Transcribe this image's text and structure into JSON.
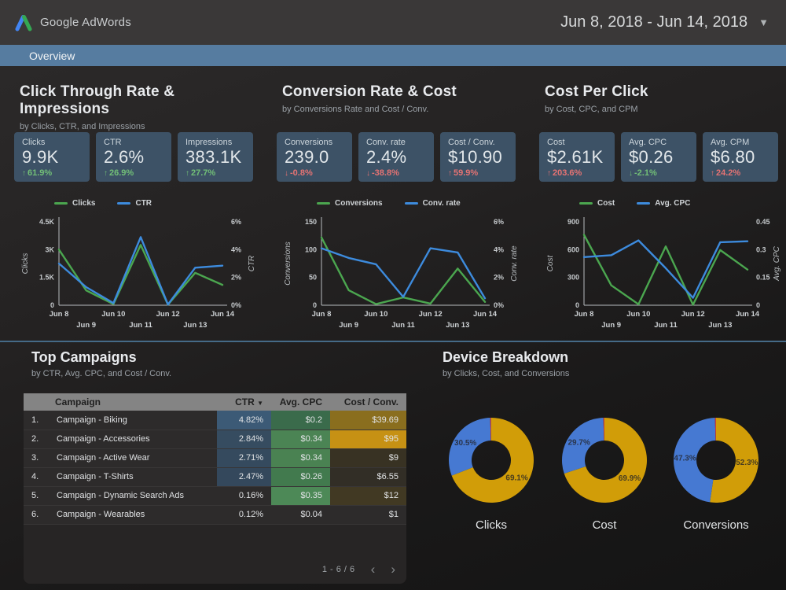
{
  "header": {
    "app_title": "Google AdWords",
    "date_range": "Jun 8, 2018 - Jun 14, 2018"
  },
  "tabs": {
    "overview": "Overview"
  },
  "sections": [
    {
      "title": "Click Through Rate & Impressions",
      "subtitle": "by Clicks, CTR, and Impressions",
      "scorecards": [
        {
          "label": "Clicks",
          "value": "9.9K",
          "arrow": "↑",
          "delta": "61.9%",
          "delta_color": "#72bf77"
        },
        {
          "label": "CTR",
          "value": "2.6%",
          "arrow": "↑",
          "delta": "26.9%",
          "delta_color": "#72bf77"
        },
        {
          "label": "Impressions",
          "value": "383.1K",
          "arrow": "↑",
          "delta": "27.7%",
          "delta_color": "#72bf77"
        }
      ]
    },
    {
      "title": "Conversion Rate & Cost",
      "subtitle": "by Conversions Rate and Cost / Conv.",
      "scorecards": [
        {
          "label": "Conversions",
          "value": "239.0",
          "arrow": "↓",
          "delta": "-0.8%",
          "delta_color": "#e57373"
        },
        {
          "label": "Conv. rate",
          "value": "2.4%",
          "arrow": "↓",
          "delta": "-38.8%",
          "delta_color": "#e57373"
        },
        {
          "label": "Cost / Conv.",
          "value": "$10.90",
          "arrow": "↑",
          "delta": "59.9%",
          "delta_color": "#e57373"
        }
      ]
    },
    {
      "title": "Cost Per Click",
      "subtitle": "by Cost, CPC, and CPM",
      "scorecards": [
        {
          "label": "Cost",
          "value": "$2.61K",
          "arrow": "↑",
          "delta": "203.6%",
          "delta_color": "#e57373"
        },
        {
          "label": "Avg. CPC",
          "value": "$0.26",
          "arrow": "↓",
          "delta": "-2.1%",
          "delta_color": "#72bf77"
        },
        {
          "label": "Avg. CPM",
          "value": "$6.80",
          "arrow": "↑",
          "delta": "24.2%",
          "delta_color": "#e57373"
        }
      ]
    }
  ],
  "chart_data": [
    {
      "type": "line",
      "x": [
        "Jun 8",
        "Jun 9",
        "Jun 10",
        "Jun 11",
        "Jun 12",
        "Jun 13",
        "Jun 14"
      ],
      "series": [
        {
          "name": "Clicks",
          "axis": "left",
          "color": "#4ba64f",
          "values": [
            3000,
            800,
            60,
            3250,
            30,
            1750,
            1100
          ]
        },
        {
          "name": "CTR",
          "axis": "right",
          "color": "#3d8bdd",
          "values": [
            3.0,
            1.3,
            0.15,
            4.9,
            0.05,
            2.7,
            2.85
          ]
        }
      ],
      "left_axis": {
        "label": "Clicks",
        "min": 0,
        "max": 4500,
        "ticks": [
          "0",
          "1.5K",
          "3K",
          "4.5K"
        ]
      },
      "right_axis": {
        "label": "CTR",
        "min": 0,
        "max": 6,
        "ticks": [
          "0%",
          "2%",
          "4%",
          "6%"
        ]
      }
    },
    {
      "type": "line",
      "x": [
        "Jun 8",
        "Jun 9",
        "Jun 10",
        "Jun 11",
        "Jun 12",
        "Jun 13",
        "Jun 14"
      ],
      "series": [
        {
          "name": "Conversions",
          "axis": "left",
          "color": "#4ba64f",
          "values": [
            122,
            27,
            2,
            14,
            3,
            66,
            6
          ]
        },
        {
          "name": "Conv. rate",
          "axis": "right",
          "color": "#3d8bdd",
          "values": [
            4.1,
            3.4,
            2.95,
            0.6,
            4.1,
            3.8,
            0.5
          ]
        }
      ],
      "left_axis": {
        "label": "Conversions",
        "min": 0,
        "max": 150,
        "ticks": [
          "0",
          "50",
          "100",
          "150"
        ]
      },
      "right_axis": {
        "label": "Conv. rate",
        "min": 0,
        "max": 6,
        "ticks": [
          "0%",
          "2%",
          "4%",
          "6%"
        ]
      }
    },
    {
      "type": "line",
      "x": [
        "Jun 8",
        "Jun 9",
        "Jun 10",
        "Jun 11",
        "Jun 12",
        "Jun 13",
        "Jun 14"
      ],
      "series": [
        {
          "name": "Cost",
          "axis": "left",
          "color": "#4ba64f",
          "values": [
            760,
            215,
            10,
            635,
            5,
            595,
            385
          ]
        },
        {
          "name": "Avg. CPC",
          "axis": "right",
          "color": "#3d8bdd",
          "values": [
            0.26,
            0.27,
            0.35,
            0.2,
            0.04,
            0.34,
            0.345
          ]
        }
      ],
      "left_axis": {
        "label": "Cost",
        "min": 0,
        "max": 900,
        "ticks": [
          "0",
          "300",
          "600",
          "900"
        ]
      },
      "right_axis": {
        "label": "Avg. CPC",
        "min": 0,
        "max": 0.45,
        "ticks": [
          "0",
          "0.15",
          "0.3",
          "0.45"
        ]
      }
    },
    {
      "type": "donut",
      "title": "Clicks",
      "slices": [
        {
          "color": "#d19d08",
          "pct": 69.1,
          "label": "69.1%"
        },
        {
          "color": "#4679d2",
          "pct": 30.5,
          "label": "30.5%"
        },
        {
          "color": "#cc3e33",
          "pct": 0.4,
          "label": ""
        }
      ]
    },
    {
      "type": "donut",
      "title": "Cost",
      "slices": [
        {
          "color": "#d19d08",
          "pct": 69.9,
          "label": "69.9%"
        },
        {
          "color": "#4679d2",
          "pct": 29.7,
          "label": "29.7%"
        },
        {
          "color": "#cc3e33",
          "pct": 0.4,
          "label": ""
        }
      ]
    },
    {
      "type": "donut",
      "title": "Conversions",
      "slices": [
        {
          "color": "#d19d08",
          "pct": 52.3,
          "label": "52.3%"
        },
        {
          "color": "#4679d2",
          "pct": 47.3,
          "label": "47.3%"
        },
        {
          "color": "#cc3e33",
          "pct": 0.4,
          "label": ""
        }
      ]
    }
  ],
  "table": {
    "title": "Top Campaigns",
    "subtitle": "by CTR, Avg. CPC, and Cost / Conv.",
    "columns": [
      "Campaign",
      "CTR",
      "Avg. CPC",
      "Cost / Conv."
    ],
    "sort_icon": "▼",
    "rows": [
      {
        "index": "1.",
        "campaign": "Campaign - Biking",
        "ctr": "4.82%",
        "cpc": "$0.2",
        "cost": "$39.69",
        "ctr_bg": "#3c5a76",
        "cpc_bg": "#3a6b4b",
        "cost_bg": "#8a6e1e"
      },
      {
        "index": "2.",
        "campaign": "Campaign - Accessories",
        "ctr": "2.84%",
        "cpc": "$0.34",
        "cost": "$95",
        "ctr_bg": "#364c60",
        "cpc_bg": "#4b8454",
        "cost_bg": "#c69114"
      },
      {
        "index": "3.",
        "campaign": "Campaign - Active Wear",
        "ctr": "2.71%",
        "cpc": "$0.34",
        "cost": "$9",
        "ctr_bg": "#354a5e",
        "cpc_bg": "#4a8252",
        "cost_bg": "#383223"
      },
      {
        "index": "4.",
        "campaign": "Campaign - T-Shirts",
        "ctr": "2.47%",
        "cpc": "$0.26",
        "cost": "$6.55",
        "ctr_bg": "#34485c",
        "cpc_bg": "#427a4e",
        "cost_bg": "#322e26"
      },
      {
        "index": "5.",
        "campaign": "Campaign - Dynamic Search Ads",
        "ctr": "0.16%",
        "cpc": "$0.35",
        "cost": "$12",
        "ctr_bg": "",
        "cpc_bg": "#4d8957",
        "cost_bg": "#413923"
      },
      {
        "index": "6.",
        "campaign": "Campaign - Wearables",
        "ctr": "0.12%",
        "cpc": "$0.04",
        "cost": "$1",
        "ctr_bg": "",
        "cpc_bg": "",
        "cost_bg": ""
      }
    ],
    "pagination": {
      "label": "1 - 6 / 6",
      "prev": "‹",
      "next": "›"
    }
  },
  "device": {
    "title": "Device Breakdown",
    "subtitle": "by Clicks, Cost, and Conversions"
  }
}
